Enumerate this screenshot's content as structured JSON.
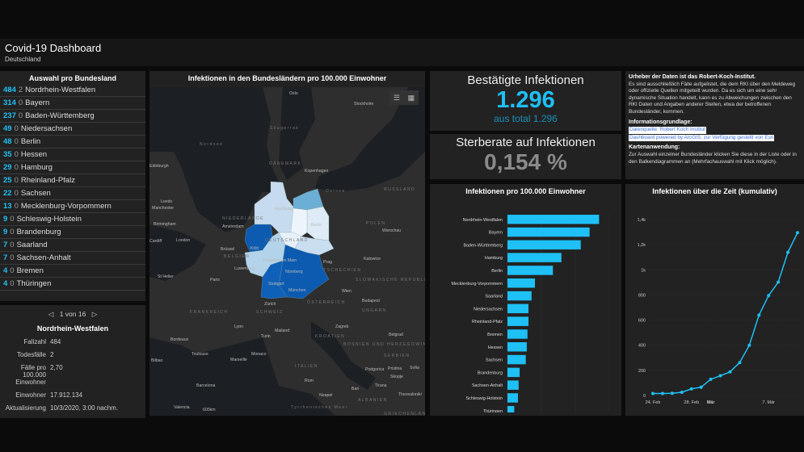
{
  "header": {
    "title": "Covid-19 Dashboard",
    "subtitle": "Deutschland"
  },
  "list": {
    "title": "Auswahl pro Bundesland",
    "items": [
      {
        "cases": "484",
        "deaths": "2",
        "name": "Nordrhein-Westfalen"
      },
      {
        "cases": "314",
        "deaths": "0",
        "name": "Bayern"
      },
      {
        "cases": "237",
        "deaths": "0",
        "name": "Baden-Württemberg"
      },
      {
        "cases": "49",
        "deaths": "0",
        "name": "Niedersachsen"
      },
      {
        "cases": "48",
        "deaths": "0",
        "name": "Berlin"
      },
      {
        "cases": "35",
        "deaths": "0",
        "name": "Hessen"
      },
      {
        "cases": "29",
        "deaths": "0",
        "name": "Hamburg"
      },
      {
        "cases": "25",
        "deaths": "0",
        "name": "Rheinland-Pfalz"
      },
      {
        "cases": "22",
        "deaths": "0",
        "name": "Sachsen"
      },
      {
        "cases": "13",
        "deaths": "0",
        "name": "Mecklenburg-Vorpommern"
      },
      {
        "cases": "9",
        "deaths": "0",
        "name": "Schleswig-Holstein"
      },
      {
        "cases": "9",
        "deaths": "0",
        "name": "Brandenburg"
      },
      {
        "cases": "7",
        "deaths": "0",
        "name": "Saarland"
      },
      {
        "cases": "7",
        "deaths": "0",
        "name": "Sachsen-Anhalt"
      },
      {
        "cases": "4",
        "deaths": "0",
        "name": "Bremen"
      },
      {
        "cases": "4",
        "deaths": "0",
        "name": "Thüringen"
      }
    ]
  },
  "details": {
    "pager": "1 von 16",
    "title": "Nordrhein-Westfalen",
    "rows": [
      {
        "k": "Fallzahl",
        "v": "484"
      },
      {
        "k": "Todesfälle",
        "v": "2"
      },
      {
        "k": "Fälle pro 100.000 Einwohner",
        "v": "2,70"
      },
      {
        "k": "Einwohner",
        "v": "17.912.134"
      },
      {
        "k": "Aktualisierung",
        "v": "10/3/2020, 3:00 nachm."
      }
    ]
  },
  "map": {
    "title": "Infektionen in den Bundesländern pro 100.000 Einwohner",
    "icons": [
      "legend-icon",
      "basemap-gallery-icon"
    ],
    "labels": [
      "Oslo",
      "Stockholm",
      "Skagerrak",
      "Nordsee",
      "Edinburgh",
      "Kopenhagen",
      "DÄNEMARK",
      "Ostsee",
      "RUSSLAND",
      "Leeds",
      "Manchester",
      "Birmingham",
      "NIEDERLANDE",
      "Amsterdam",
      "Hamburg",
      "Berlin",
      "POLEN",
      "Warschau",
      "Cardiff",
      "London",
      "DEUTSCHLAND",
      "Köln",
      "Brüssel",
      "BELGIEN",
      "Frankfurt am Main",
      "Luxemburg",
      "Prag",
      "Katowice",
      "TSCHECHIEN",
      "St Helier",
      "Paris",
      "Nürnberg",
      "Stuttgart",
      "SLOWAKISCHE REPUBLIK",
      "München",
      "Wien",
      "Budapest",
      "Zürich",
      "ÖSTERREICH",
      "FRANKREICH",
      "SCHWEIZ",
      "UNGARN",
      "Lyon",
      "Mailand",
      "Turin",
      "Zagreb",
      "KROATIEN",
      "Bordeaux",
      "BOSNIEN UND HERZEGOWINA",
      "Belgrad",
      "SERBIEN",
      "Toulouse",
      "Monaco",
      "Marseille",
      "ITALIEN",
      "Bilbao",
      "Rom",
      "Podgorica",
      "Pristina",
      "Sofia",
      "Skopje",
      "Barcelona",
      "Neapel",
      "Bari",
      "Tirana",
      "ALBANIEN",
      "Thessaloniki",
      "Valencia",
      "Tyrrhenisches Meer",
      "GRIECHENLAND",
      "600km"
    ]
  },
  "infections": {
    "title": "Bestätigte Infektionen",
    "value": "1.296",
    "sub": "aus total 1.296",
    "color": "#1ec0f5"
  },
  "death_rate": {
    "title": "Sterberate auf Infektionen",
    "value": "0,154 %"
  },
  "info": {
    "h1": "Urheber der Daten ist das Robert-Koch-Institut.",
    "p1": "Es sind ausschließlich Fälle aufgelistet, die dem RKI über den Meldeweg oder offizielle Quellen mitgeteilt wurden. Da es sich um eine sehr dynamische Situation handelt, kann es zu Abweichungen zwischen den RKI Daten und Angaben anderer Stellen, etwa der betroffenen Bundesländer, kommen.",
    "h2": "Informationsgrundlage:",
    "link1": "Datenquelle: Robert Koch Institut",
    "link2": "Dashboard powered by ArcGIS, zur Verfügung gestellt von Esri",
    "h3": "Kartenanwendung:",
    "p3": "Zur Auswahl einzelner Bundesländer klicken Sie diese in der Liste oder in den Balkendiagrammen an (Mehrfachauswahl mit Klick möglich)."
  },
  "chart_data": [
    {
      "type": "bar",
      "orientation": "horizontal",
      "title": "Infektionen pro 100.000 Einwohner",
      "categories": [
        "Nordrhein-Westfalen",
        "Bayern",
        "Baden-Württemberg",
        "Hamburg",
        "Berlin",
        "Mecklenburg-Vorpommern",
        "Saarland",
        "Niedersachsen",
        "Rheinland-Pfalz",
        "Bremen",
        "Hessen",
        "Sachsen",
        "Brandenburg",
        "Sachsen-Anhalt",
        "Schleswig-Holstein",
        "Thüringen"
      ],
      "values": [
        2.7,
        2.42,
        2.16,
        1.59,
        1.34,
        0.81,
        0.71,
        0.62,
        0.62,
        0.59,
        0.57,
        0.54,
        0.36,
        0.33,
        0.31,
        0.2
      ],
      "xlim": [
        0,
        3
      ],
      "grid": true,
      "color": "#1ec0f5"
    },
    {
      "type": "line",
      "title": "Infektionen über die Zeit (kumulativ)",
      "x": [
        "2020-02-24",
        "2020-02-25",
        "2020-02-26",
        "2020-02-27",
        "2020-02-28",
        "2020-02-29",
        "2020-03-01",
        "2020-03-02",
        "2020-03-03",
        "2020-03-04",
        "2020-03-05",
        "2020-03-06",
        "2020-03-07",
        "2020-03-08",
        "2020-03-09",
        "2020-03-10"
      ],
      "values": [
        16,
        16,
        18,
        26,
        53,
        66,
        129,
        157,
        188,
        262,
        400,
        639,
        795,
        902,
        1139,
        1296
      ],
      "ylim": [
        0,
        1400
      ],
      "ytick_labels": [
        "0",
        "200",
        "400",
        "600",
        "800",
        "1k",
        "1,2k",
        "1,4k"
      ],
      "xtick_labels": [
        {
          "date": "2020-02-24",
          "label": "24. Feb"
        },
        {
          "date": "2020-02-28",
          "label": "28. Feb"
        },
        {
          "date": "2020-03-01",
          "label": "Mär"
        },
        {
          "date": "2020-03-07",
          "label": "7. Mär"
        }
      ],
      "grid": true,
      "color": "#1ec0f5"
    }
  ]
}
